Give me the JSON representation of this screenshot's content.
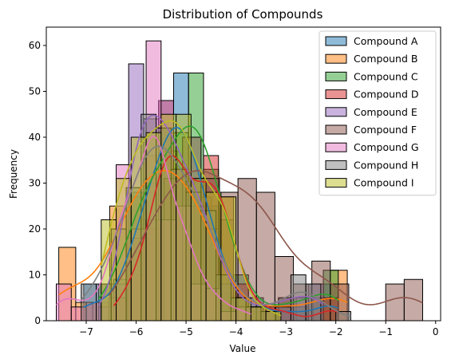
{
  "chart_data": {
    "type": "histogram",
    "title": "Distribution of Compounds",
    "xlabel": "Value",
    "ylabel": "Frequency",
    "xlim": [
      -7.8,
      0.1
    ],
    "ylim": [
      0,
      64
    ],
    "xticks": [
      -7,
      -6,
      -5,
      -4,
      -3,
      -2,
      -1,
      0
    ],
    "yticks": [
      0,
      10,
      20,
      30,
      40,
      50,
      60
    ],
    "legend_position": "upper right",
    "grid": false,
    "kde": true,
    "series": [
      {
        "name": "Compound A",
        "color": "#1f77b4",
        "bin_start": -7.05,
        "bin_width": 0.3,
        "counts": [
          8,
          0,
          8,
          20,
          30,
          42,
          54,
          31,
          25,
          6,
          5,
          5,
          0,
          3,
          2,
          0,
          8
        ]
      },
      {
        "name": "Compound B",
        "color": "#ff7f0e",
        "bin_start": -7.55,
        "bin_width": 0.34,
        "counts": [
          16,
          4,
          4,
          25,
          27,
          36,
          37,
          31,
          27,
          10,
          3,
          2,
          3,
          5,
          0,
          5,
          11
        ]
      },
      {
        "name": "Compound C",
        "color": "#2ca02c",
        "bin_start": -6.75,
        "bin_width": 0.3,
        "counts": [
          8,
          9,
          28,
          31,
          36,
          41,
          54,
          33,
          22,
          10,
          2,
          2,
          5,
          3,
          5,
          11
        ]
      },
      {
        "name": "Compound D",
        "color": "#d62728",
        "bin_start": -6.45,
        "bin_width": 0.3,
        "counts": [
          5,
          10,
          20,
          48,
          33,
          25,
          36,
          27,
          8,
          3,
          2,
          3,
          0,
          0,
          5
        ]
      },
      {
        "name": "Compound E",
        "color": "#9467bd",
        "bin_start": -6.75,
        "bin_width": 0.3,
        "counts": [
          3,
          8,
          56,
          44,
          48,
          33,
          31,
          20,
          8,
          3,
          3,
          3,
          5,
          5,
          8
        ]
      },
      {
        "name": "Compound F",
        "color": "#8c564b",
        "bin_start": -6.55,
        "bin_width": 0.37,
        "counts": [
          5,
          18,
          22,
          31,
          40,
          31,
          28,
          31,
          28,
          14,
          8,
          13,
          8,
          0,
          0,
          8,
          9
        ]
      },
      {
        "name": "Compound G",
        "color": "#e377c2",
        "bin_start": -7.6,
        "bin_width": 0.3,
        "counts": [
          8,
          3,
          4,
          8,
          34,
          20,
          61,
          22,
          25,
          8,
          7,
          2,
          3
        ]
      },
      {
        "name": "Compound H",
        "color": "#7f7f7f",
        "bin_start": -7.1,
        "bin_width": 0.3,
        "counts": [
          8,
          8,
          20,
          29,
          45,
          42,
          33,
          28,
          24,
          10,
          5,
          3,
          2,
          3,
          10,
          8,
          0,
          2
        ]
      },
      {
        "name": "Compound I",
        "color": "#bcbd22",
        "bin_start": -6.7,
        "bin_width": 0.3,
        "counts": [
          22,
          31,
          40,
          41,
          45,
          45,
          31,
          28,
          27,
          5,
          3,
          2
        ]
      }
    ]
  }
}
